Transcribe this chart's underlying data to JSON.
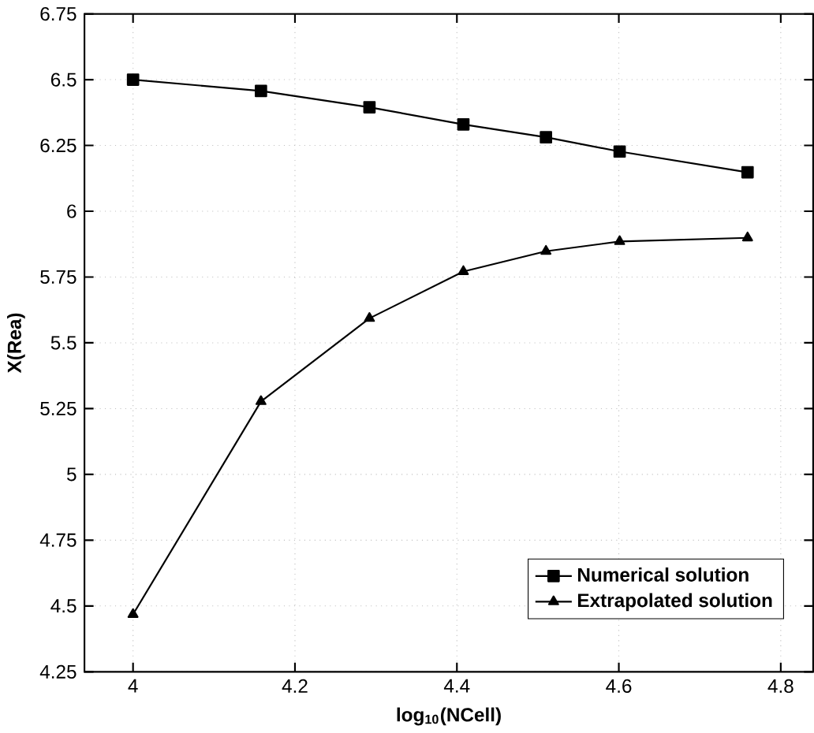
{
  "chart_data": {
    "type": "line",
    "xlabel": "log$_{10}$(NCell)",
    "ylabel": "X(Rea)",
    "xlim": [
      3.94,
      4.84
    ],
    "xticks": [
      4,
      4.2,
      4.4,
      4.6,
      4.8
    ],
    "ylim": [
      4.25,
      6.75
    ],
    "yticks": [
      4.25,
      4.5,
      4.75,
      5,
      5.25,
      5.5,
      5.75,
      6,
      6.25,
      6.5,
      6.75
    ],
    "grid": true,
    "legend": "bottom right",
    "series": [
      {
        "name": "Numerical solution",
        "color": "#000000",
        "marker": "square",
        "x": [
          4.0,
          4.158,
          4.292,
          4.408,
          4.51,
          4.601,
          4.759
        ],
        "values": [
          6.5,
          6.457,
          6.395,
          6.33,
          6.281,
          6.227,
          6.148
        ]
      },
      {
        "name": "Extrapolated solution",
        "color": "#000000",
        "marker": "triangle",
        "x": [
          4.0,
          4.158,
          4.292,
          4.408,
          4.51,
          4.601,
          4.759
        ],
        "values": [
          4.468,
          5.277,
          5.593,
          5.771,
          5.848,
          5.885,
          5.899
        ]
      }
    ]
  }
}
